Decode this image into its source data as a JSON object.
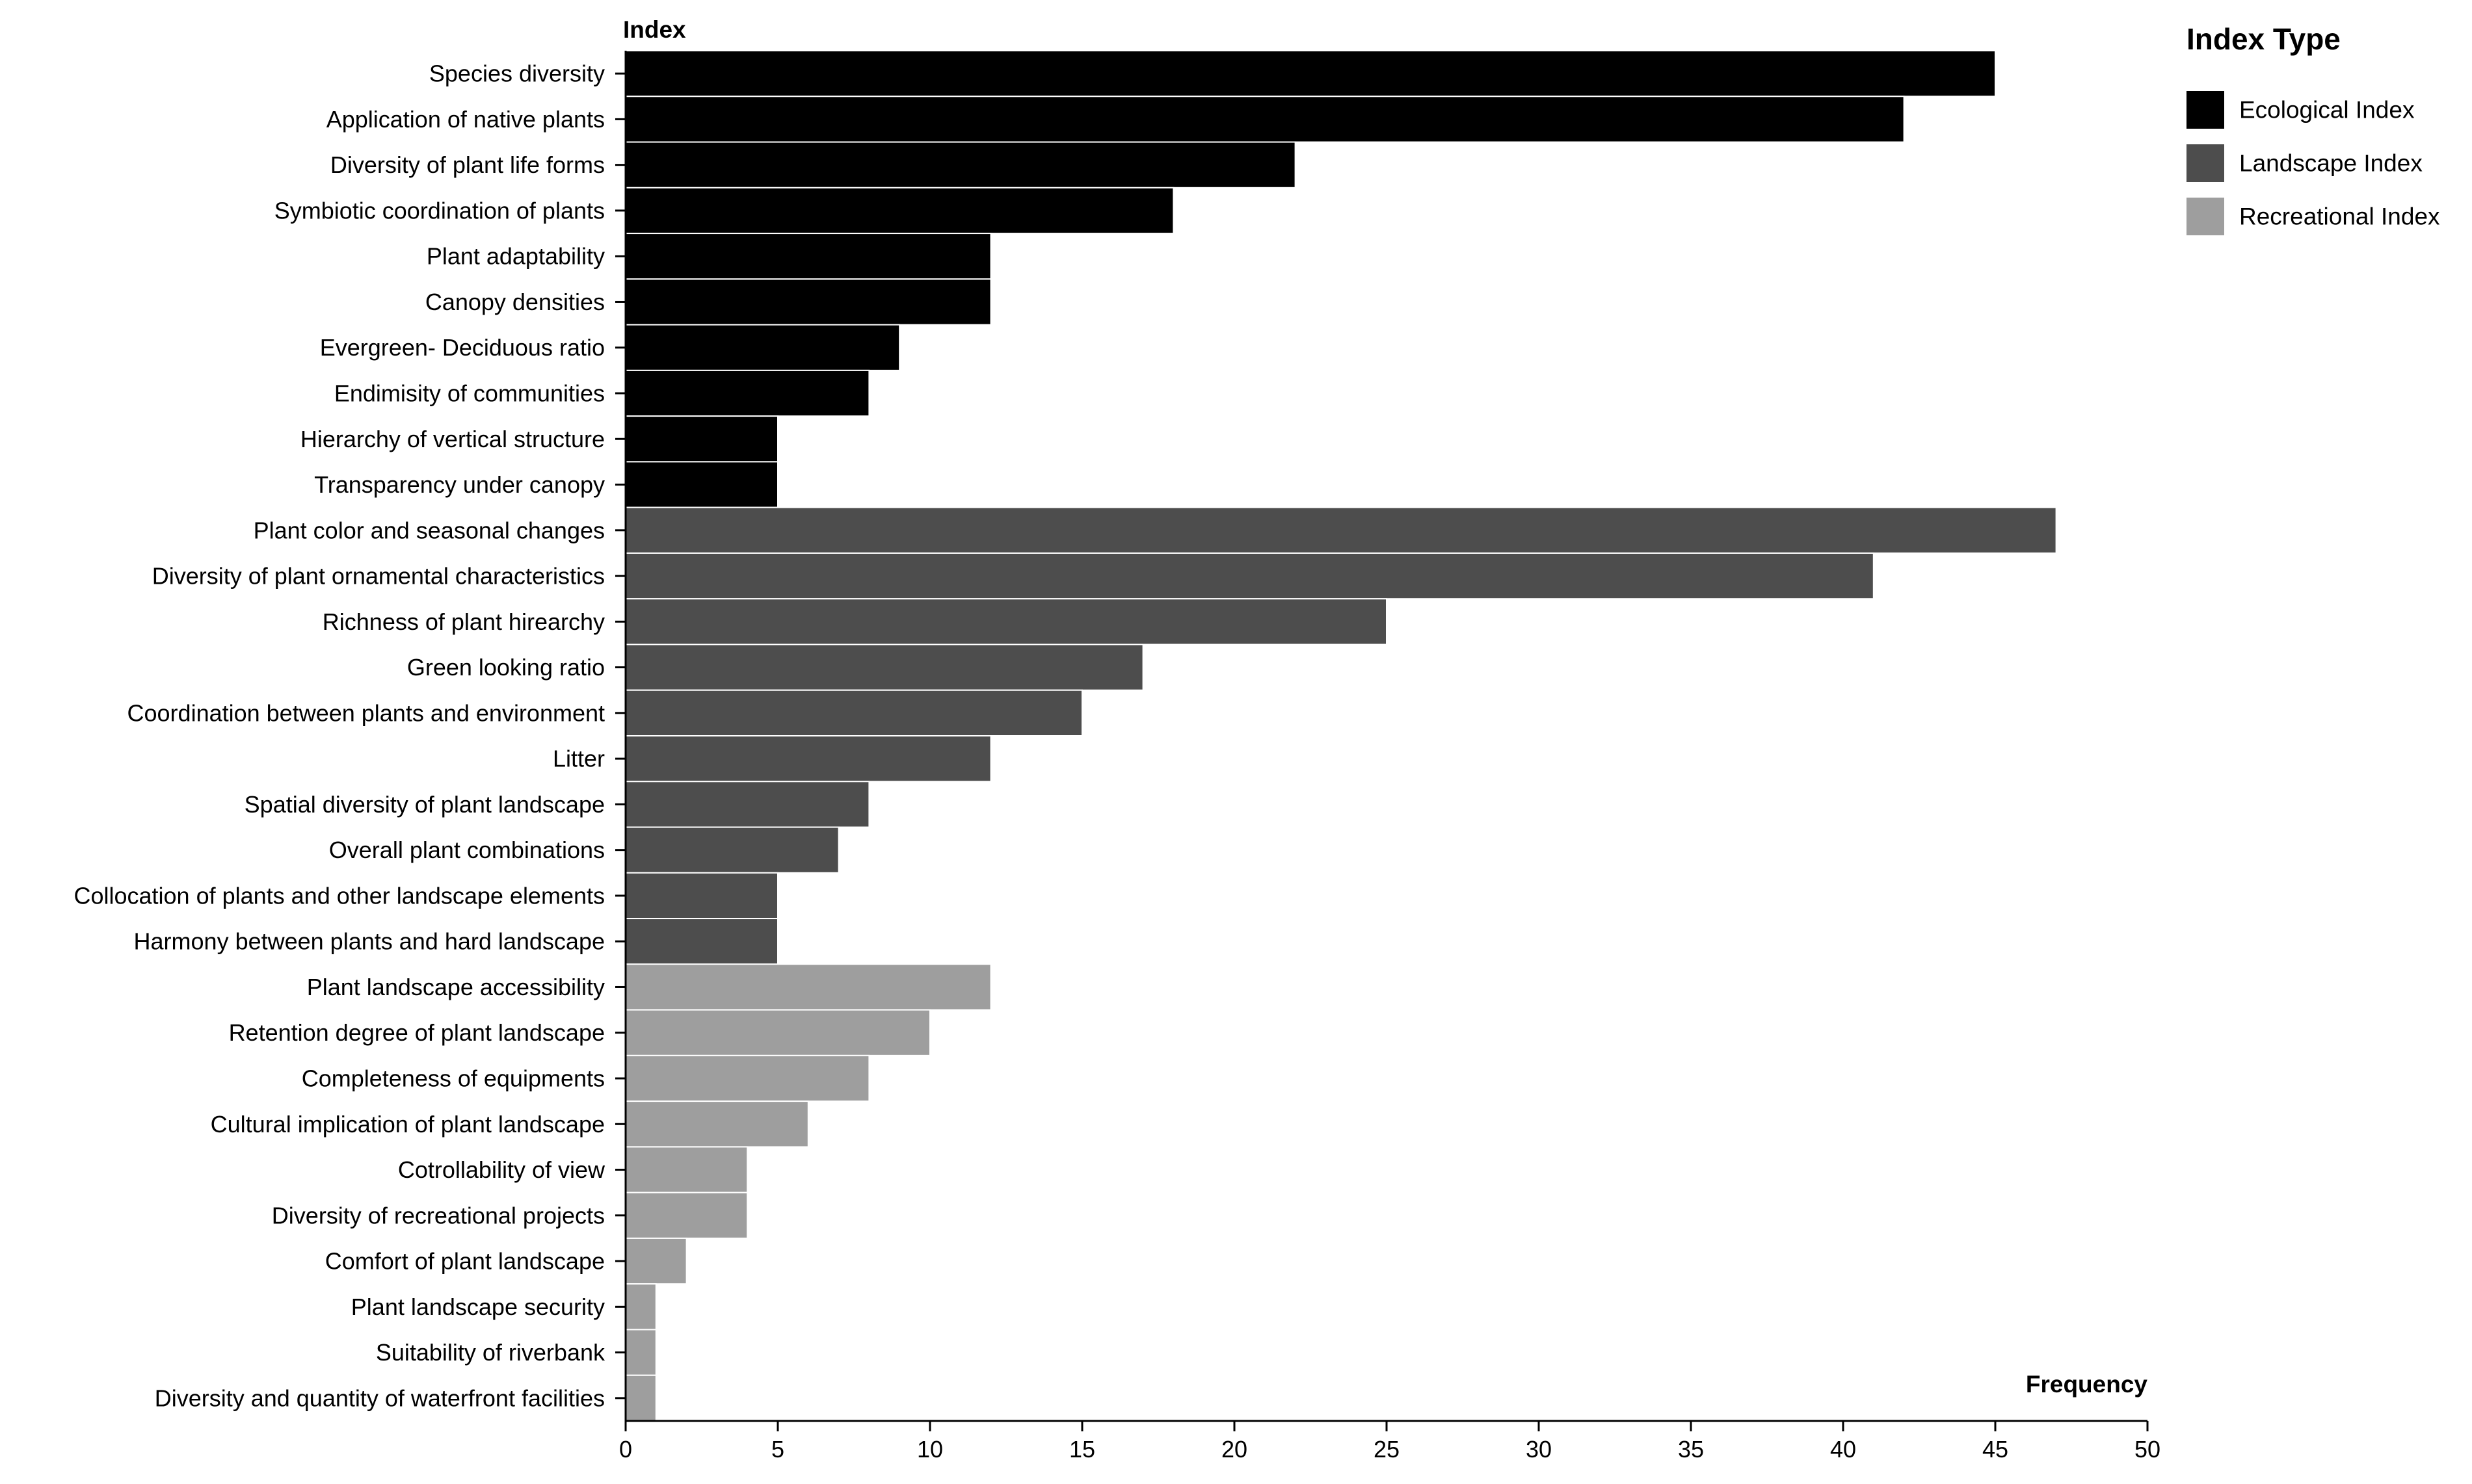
{
  "chart_data": {
    "type": "bar",
    "orientation": "horizontal",
    "xlabel": "Frequency",
    "ylabel": "Index",
    "xlim": [
      0,
      50
    ],
    "xticks": [
      0,
      5,
      10,
      15,
      20,
      25,
      30,
      35,
      40,
      45,
      50
    ],
    "grid": false,
    "legend": {
      "title": "Index Type",
      "position": "right",
      "entries": [
        {
          "name": "Ecological Index",
          "color": "#000000"
        },
        {
          "name": "Landscape Index",
          "color": "#4d4d4d"
        },
        {
          "name": "Recreational Index",
          "color": "#9e9e9e"
        }
      ]
    },
    "categories": [
      "Species diversity",
      "Application of native plants",
      "Diversity of plant life forms",
      "Symbiotic coordination of plants",
      "Plant adaptability",
      "Canopy densities",
      "Evergreen- Deciduous ratio",
      "Endimisity of communities",
      "Hierarchy of vertical structure",
      "Transparency under canopy",
      "Plant color and seasonal changes",
      "Diversity of plant ornamental characteristics",
      "Richness of plant hirearchy",
      "Green looking ratio",
      "Coordination between plants and environment",
      "Litter",
      "Spatial diversity of plant landscape",
      "Overall plant combinations",
      "Collocation of plants and other landscape elements",
      "Harmony between plants and hard landscape",
      "Plant landscape accessibility",
      "Retention degree of plant landscape",
      "Completeness of equipments",
      "Cultural implication of plant landscape",
      "Cotrollability of view",
      "Diversity of recreational projects",
      "Comfort of plant landscape",
      "Plant landscape security",
      "Suitability of riverbank",
      "Diversity and quantity of waterfront facilities"
    ],
    "values": [
      45,
      42,
      22,
      18,
      12,
      12,
      9,
      8,
      5,
      5,
      47,
      41,
      25,
      17,
      15,
      12,
      8,
      7,
      5,
      5,
      12,
      10,
      8,
      6,
      4,
      4,
      2,
      1,
      1,
      1
    ],
    "groups": [
      "Ecological Index",
      "Ecological Index",
      "Ecological Index",
      "Ecological Index",
      "Ecological Index",
      "Ecological Index",
      "Ecological Index",
      "Ecological Index",
      "Ecological Index",
      "Ecological Index",
      "Landscape Index",
      "Landscape Index",
      "Landscape Index",
      "Landscape Index",
      "Landscape Index",
      "Landscape Index",
      "Landscape Index",
      "Landscape Index",
      "Landscape Index",
      "Landscape Index",
      "Recreational Index",
      "Recreational Index",
      "Recreational Index",
      "Recreational Index",
      "Recreational Index",
      "Recreational Index",
      "Recreational Index",
      "Recreational Index",
      "Recreational Index",
      "Recreational Index"
    ]
  }
}
